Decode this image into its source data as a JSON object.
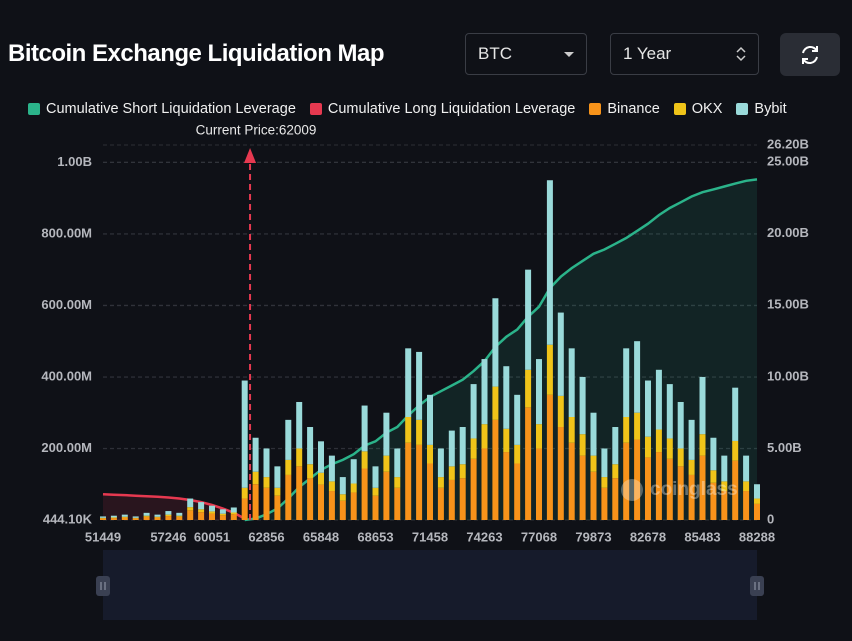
{
  "header": {
    "title": "Bitcoin Exchange Liquidation Map",
    "coin": "BTC",
    "period": "1 Year"
  },
  "chart_data": {
    "type": "bar",
    "stacked": true,
    "grid": true,
    "watermark": "coinglass",
    "annotation": {
      "label": "Current Price:62009",
      "value": 62009,
      "color": "#e63950"
    },
    "categories": [
      51449,
      null,
      null,
      null,
      null,
      null,
      57246,
      null,
      null,
      null,
      60051,
      null,
      null,
      null,
      null,
      62856,
      null,
      null,
      null,
      null,
      65848,
      null,
      null,
      null,
      null,
      68653,
      null,
      null,
      null,
      null,
      71458,
      null,
      null,
      null,
      null,
      74263,
      null,
      null,
      null,
      null,
      77068,
      null,
      null,
      null,
      null,
      79873,
      null,
      null,
      null,
      null,
      82678,
      null,
      null,
      null,
      null,
      85483,
      null,
      null,
      null,
      null,
      88288
    ],
    "ylim": [
      444100,
      1049000000
    ],
    "yticks": [
      {
        "value": 444100,
        "label": "444.10K"
      },
      {
        "value": 200000000,
        "label": "200.00M"
      },
      {
        "value": 400000000,
        "label": "400.00M"
      },
      {
        "value": 600000000,
        "label": "600.00M"
      },
      {
        "value": 800000000,
        "label": "800.00M"
      },
      {
        "value": 1000000000,
        "label": "1.00B"
      }
    ],
    "y2lim": [
      0,
      26200000000
    ],
    "y2ticks": [
      0,
      {
        "value": 5000000000,
        "label": "5.00B"
      },
      {
        "value": 10000000000,
        "label": "10.00B"
      },
      {
        "value": 15000000000,
        "label": "15.00B"
      },
      {
        "value": 20000000000,
        "label": "20.00B"
      },
      {
        "value": 25000000000,
        "label": "25.00B"
      },
      {
        "value": 26200000000,
        "label": "26.20B"
      }
    ],
    "series": [
      {
        "name": "Cumulative Short Liquidation Leverage",
        "color": "#2bb38a",
        "type": "line",
        "axis": "y2",
        "values": [
          null,
          null,
          null,
          null,
          null,
          null,
          null,
          null,
          null,
          null,
          null,
          null,
          null,
          0,
          100000000.0,
          400000000.0,
          800000000.0,
          1500000000.0,
          2300000000.0,
          2900000000.0,
          3500000000.0,
          3900000000.0,
          4200000000.0,
          4600000000.0,
          5200000000.0,
          5500000000.0,
          6100000000.0,
          6500000000.0,
          7300000000.0,
          8000000000.0,
          8600000000.0,
          9000000000.0,
          9400000000.0,
          9800000000.0,
          10400000000.0,
          11100000000.0,
          12100000000.0,
          12800000000.0,
          13300000000.0,
          14200000000.0,
          14900000000.0,
          16200000000.0,
          17000000000.0,
          17600000000.0,
          18100000000.0,
          18600000000.0,
          18900000000.0,
          19300000000.0,
          19700000000.0,
          20200000000.0,
          20700000000.0,
          21300000000.0,
          21800000000.0,
          22200000000.0,
          22600000000.0,
          22900000000.0,
          23100000000.0,
          23300000000.0,
          23500000000.0,
          23700000000.0,
          23800000000.0
        ]
      },
      {
        "name": "Cumulative Long Liquidation Leverage",
        "color": "#e63950",
        "type": "line",
        "axis": "y2",
        "values": [
          1800000000.0,
          1770000000.0,
          1740000000.0,
          1700000000.0,
          1660000000.0,
          1620000000.0,
          1570000000.0,
          1500000000.0,
          1400000000.0,
          1250000000.0,
          1050000000.0,
          800000000.0,
          500000000.0,
          100000000.0,
          null,
          null,
          null,
          null,
          null,
          null,
          null,
          null,
          null,
          null,
          null,
          null,
          null,
          null,
          null,
          null,
          null,
          null,
          null,
          null,
          null,
          null,
          null,
          null,
          null,
          null,
          null,
          null,
          null,
          null,
          null,
          null,
          null,
          null,
          null,
          null,
          null,
          null,
          null,
          null,
          null,
          null,
          null,
          null,
          null,
          null,
          null
        ]
      },
      {
        "name": "Binance",
        "color": "#f7931a",
        "values": [
          4500000.0,
          5400000.0,
          6800000.0,
          4500000.0,
          9000000.0,
          6800000.0,
          11000000.0,
          9000000.0,
          27000000.0,
          22000000.0,
          18000000.0,
          13000000.0,
          16000000.0,
          60000000.0,
          100000000.0,
          90000000.0,
          68000000.0,
          126000000.0,
          150000000.0,
          117000000.0,
          99000000.0,
          81000000.0,
          54000000.0,
          77000000.0,
          144000000.0,
          68000000.0,
          135000000.0,
          90000000.0,
          216000000.0,
          210000000.0,
          158000000.0,
          90000000.0,
          112000000.0,
          117000000.0,
          171000000.0,
          200000000.0,
          280000000.0,
          190000000.0,
          158000000.0,
          315000000.0,
          200000000.0,
          350000000.0,
          260000000.0,
          216000000.0,
          180000000.0,
          135000000.0,
          90000000.0,
          117000000.0,
          216000000.0,
          225000000.0,
          175000000.0,
          190000000.0,
          171000000.0,
          150000000.0,
          126000000.0,
          180000000.0,
          104000000.0,
          81000000.0,
          166000000.0,
          81000000.0,
          45000000.0
        ]
      },
      {
        "name": "OKX",
        "color": "#f0c419",
        "values": [
          1500000.0,
          1800000.0,
          2200000.0,
          1500000.0,
          3000000.0,
          2200000.0,
          4000000.0,
          3000000.0,
          9000000.0,
          8000000.0,
          6000000.0,
          4500000.0,
          5000000.0,
          30000000.0,
          35000000.0,
          30000000.0,
          22000000.0,
          42000000.0,
          50000000.0,
          39000000.0,
          33000000.0,
          27000000.0,
          18000000.0,
          25000000.0,
          48000000.0,
          22000000.0,
          45000000.0,
          30000000.0,
          72000000.0,
          70000000.0,
          52000000.0,
          30000000.0,
          38000000.0,
          39000000.0,
          57000000.0,
          68000000.0,
          93000000.0,
          65000000.0,
          52000000.0,
          105000000.0,
          68000000.0,
          140000000.0,
          87000000.0,
          72000000.0,
          60000000.0,
          45000000.0,
          30000000.0,
          39000000.0,
          72000000.0,
          75000000.0,
          58000000.0,
          63000000.0,
          57000000.0,
          50000000.0,
          42000000.0,
          60000000.0,
          35000000.0,
          27000000.0,
          55000000.0,
          27000000.0,
          15000000.0
        ]
      },
      {
        "name": "Bybit",
        "color": "#9adada",
        "values": [
          4000000.0,
          4800000.0,
          6000000.0,
          4000000.0,
          8000000.0,
          6000000.0,
          10000000.0,
          8000000.0,
          24000000.0,
          20000000.0,
          16000000.0,
          12500000.0,
          14000000.0,
          300000000.0,
          95000000.0,
          80000000.0,
          60000000.0,
          112000000.0,
          130000000.0,
          104000000.0,
          88000000.0,
          72000000.0,
          48000000.0,
          68000000.0,
          128000000.0,
          60000000.0,
          120000000.0,
          80000000.0,
          192000000.0,
          190000000.0,
          140000000.0,
          80000000.0,
          100000000.0,
          104000000.0,
          152000000.0,
          182000000.0,
          247000000.0,
          175000000.0,
          140000000.0,
          280000000.0,
          182000000.0,
          460000000.0,
          233000000.0,
          192000000.0,
          160000000.0,
          120000000.0,
          80000000.0,
          104000000.0,
          192000000.0,
          200000000.0,
          157000000.0,
          167000000.0,
          152000000.0,
          130000000.0,
          112000000.0,
          160000000.0,
          91000000.0,
          72000000.0,
          149000000.0,
          72000000.0,
          40000000.0
        ]
      }
    ]
  }
}
